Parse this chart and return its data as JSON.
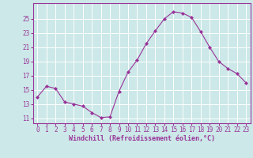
{
  "x": [
    0,
    1,
    2,
    3,
    4,
    5,
    6,
    7,
    8,
    9,
    10,
    11,
    12,
    13,
    14,
    15,
    16,
    17,
    18,
    19,
    20,
    21,
    22,
    23
  ],
  "y": [
    14.0,
    15.5,
    15.2,
    13.3,
    13.0,
    12.7,
    11.8,
    11.1,
    11.2,
    14.8,
    17.5,
    19.2,
    21.5,
    23.3,
    25.0,
    26.0,
    25.8,
    25.2,
    23.2,
    21.0,
    19.0,
    18.0,
    17.3,
    16.0
  ],
  "line_color": "#993399",
  "marker": "D",
  "marker_size": 2,
  "bg_color": "#cce8e8",
  "grid_color": "#ffffff",
  "xlabel": "Windchill (Refroidissement éolien,°C)",
  "xlabel_color": "#993399",
  "yticks": [
    11,
    13,
    15,
    17,
    19,
    21,
    23,
    25
  ],
  "ylim": [
    10.3,
    27.2
  ],
  "xlim": [
    -0.5,
    23.5
  ],
  "tick_color": "#993399",
  "spine_color": "#993399",
  "tick_fontsize": 5.5,
  "xlabel_fontsize": 6.0
}
